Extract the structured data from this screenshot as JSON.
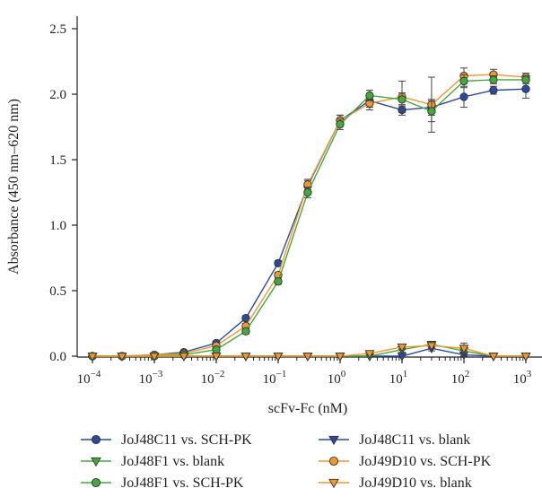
{
  "chart_data": {
    "type": "line",
    "xlabel": "scFv-Fc (nM)",
    "ylabel": "Absorbance (450 nm–620 nm)",
    "x_scale": "log",
    "xlim": [
      0.0001,
      1000
    ],
    "ylim": [
      0,
      2.5
    ],
    "x_ticks": [
      {
        "value": 0.0001,
        "base": "10",
        "exp": "−4"
      },
      {
        "value": 0.001,
        "base": "10",
        "exp": "−3"
      },
      {
        "value": 0.01,
        "base": "10",
        "exp": "−2"
      },
      {
        "value": 0.1,
        "base": "10",
        "exp": "−1"
      },
      {
        "value": 1,
        "base": "10",
        "exp": "0"
      },
      {
        "value": 10,
        "base": "10",
        "exp": "1"
      },
      {
        "value": 100,
        "base": "10",
        "exp": "2"
      },
      {
        "value": 1000,
        "base": "10",
        "exp": "3"
      }
    ],
    "y_ticks": [
      {
        "value": 0,
        "label": "0.0"
      },
      {
        "value": 0.5,
        "label": "0.5"
      },
      {
        "value": 1.0,
        "label": "1.0"
      },
      {
        "value": 1.5,
        "label": "1.5"
      },
      {
        "value": 2.0,
        "label": "2.0"
      },
      {
        "value": 2.5,
        "label": "2.5"
      }
    ],
    "grid": false,
    "legend_position": "bottom",
    "x": [
      0.0001,
      0.0003,
      0.001,
      0.003,
      0.01,
      0.03,
      0.1,
      0.3,
      1,
      3,
      10,
      30,
      100,
      300,
      1000
    ],
    "series": [
      {
        "name": "JoJ48C11 vs. SCH-PK",
        "marker": "circle",
        "color": "#2b4a9e",
        "values": [
          0.0,
          0.0,
          0.01,
          0.03,
          0.1,
          0.29,
          0.71,
          1.3,
          1.8,
          1.95,
          1.88,
          1.9,
          1.98,
          2.03,
          2.04
        ],
        "errors": [
          0,
          0,
          0,
          0.01,
          0.01,
          0.02,
          0.02,
          0.04,
          0.04,
          0.05,
          0.04,
          0.06,
          0.08,
          0.03,
          0.07
        ]
      },
      {
        "name": "JoJ48C11 vs. blank",
        "marker": "triangle-down",
        "color": "#2b4a9e",
        "values": [
          0.0,
          0.0,
          0.0,
          0.0,
          0.0,
          0.0,
          0.0,
          0.0,
          0.0,
          0.0,
          0.0,
          0.06,
          0.01,
          0.0,
          0.0
        ],
        "errors": [
          0,
          0,
          0,
          0,
          0,
          0,
          0,
          0,
          0,
          0,
          0,
          0.02,
          0.02,
          0,
          0
        ]
      },
      {
        "name": "JoJ48F1 vs. blank",
        "marker": "triangle-down",
        "color": "#45a83c",
        "values": [
          0.0,
          0.0,
          0.0,
          0.0,
          0.0,
          0.0,
          0.0,
          0.0,
          0.0,
          0.0,
          0.05,
          0.09,
          0.04,
          0.0,
          0.0
        ],
        "errors": [
          0,
          0,
          0,
          0,
          0,
          0,
          0,
          0,
          0,
          0,
          0.02,
          0.02,
          0.02,
          0,
          0
        ]
      },
      {
        "name": "JoJ49D10 vs. SCH-PK",
        "marker": "circle",
        "color": "#f0982d",
        "values": [
          0.0,
          0.0,
          0.01,
          0.02,
          0.08,
          0.23,
          0.62,
          1.31,
          1.8,
          1.93,
          1.98,
          1.92,
          2.14,
          2.15,
          2.13
        ],
        "errors": [
          0,
          0,
          0,
          0.01,
          0.01,
          0.02,
          0.02,
          0.04,
          0.04,
          0.05,
          0.12,
          0.21,
          0.06,
          0.04,
          0.03
        ]
      },
      {
        "name": "JoJ48F1 vs. SCH-PK",
        "marker": "circle",
        "color": "#45a83c",
        "values": [
          0.0,
          0.0,
          0.0,
          0.01,
          0.05,
          0.19,
          0.57,
          1.25,
          1.77,
          1.99,
          1.96,
          1.87,
          2.1,
          2.11,
          2.11
        ],
        "errors": [
          0,
          0,
          0,
          0.01,
          0.01,
          0.02,
          0.02,
          0.04,
          0.04,
          0.04,
          0.05,
          0.08,
          0.05,
          0.03,
          0.03
        ]
      },
      {
        "name": "JoJ49D10 vs. blank",
        "marker": "triangle-down",
        "color": "#f0982d",
        "values": [
          0.0,
          0.0,
          0.0,
          0.0,
          0.0,
          0.0,
          0.0,
          0.0,
          0.0,
          0.02,
          0.07,
          0.08,
          0.06,
          0.0,
          0.0
        ],
        "errors": [
          0,
          0,
          0,
          0,
          0,
          0,
          0,
          0,
          0,
          0.01,
          0.02,
          0.02,
          0.04,
          0,
          0
        ]
      }
    ]
  }
}
